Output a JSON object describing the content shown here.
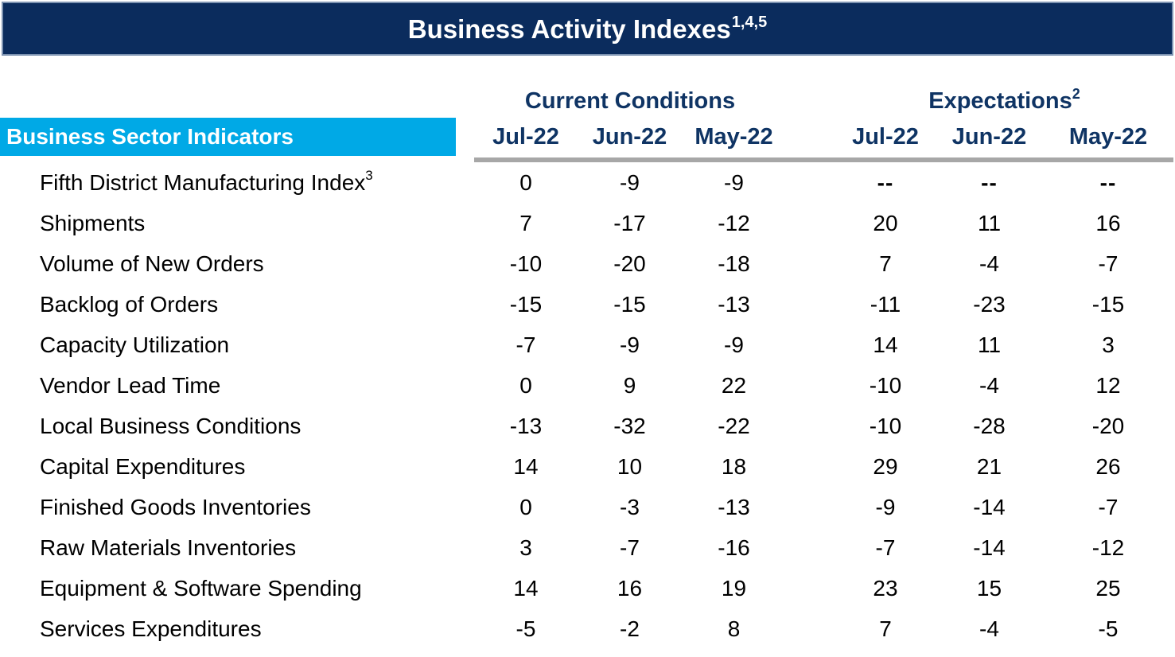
{
  "title": {
    "text": "Business Activity Indexes",
    "superscript": "1,4,5"
  },
  "colors": {
    "title_bar_bg": "#0b2c5d",
    "title_bar_border": "#7d93b1",
    "header_text_navy": "#0f3464",
    "sector_band_bg": "#00a9e6",
    "rule_gray": "#a7a7a7",
    "body_text": "#000000"
  },
  "table": {
    "sector_header": "Business Sector Indicators",
    "groups": [
      {
        "label": "Current Conditions",
        "superscript": "",
        "columns": [
          "Jul-22",
          "Jun-22",
          "May-22"
        ]
      },
      {
        "label": "Expectations",
        "superscript": "2",
        "columns": [
          "Jul-22",
          "Jun-22",
          "May-22"
        ]
      }
    ],
    "rows": [
      {
        "label": "Fifth District Manufacturing Index",
        "sup": "3",
        "current": [
          "0",
          "-9",
          "-9"
        ],
        "expectations": [
          "--",
          "--",
          "--"
        ]
      },
      {
        "label": "Shipments",
        "sup": "",
        "current": [
          "7",
          "-17",
          "-12"
        ],
        "expectations": [
          "20",
          "11",
          "16"
        ]
      },
      {
        "label": "Volume of New Orders",
        "sup": "",
        "current": [
          "-10",
          "-20",
          "-18"
        ],
        "expectations": [
          "7",
          "-4",
          "-7"
        ]
      },
      {
        "label": "Backlog of Orders",
        "sup": "",
        "current": [
          "-15",
          "-15",
          "-13"
        ],
        "expectations": [
          "-11",
          "-23",
          "-15"
        ]
      },
      {
        "label": "Capacity Utilization",
        "sup": "",
        "current": [
          "-7",
          "-9",
          "-9"
        ],
        "expectations": [
          "14",
          "11",
          "3"
        ]
      },
      {
        "label": "Vendor Lead Time",
        "sup": "",
        "current": [
          "0",
          "9",
          "22"
        ],
        "expectations": [
          "-10",
          "-4",
          "12"
        ]
      },
      {
        "label": "Local Business Conditions",
        "sup": "",
        "current": [
          "-13",
          "-32",
          "-22"
        ],
        "expectations": [
          "-10",
          "-28",
          "-20"
        ]
      },
      {
        "label": "Capital Expenditures",
        "sup": "",
        "current": [
          "14",
          "10",
          "18"
        ],
        "expectations": [
          "29",
          "21",
          "26"
        ]
      },
      {
        "label": "Finished Goods Inventories",
        "sup": "",
        "current": [
          "0",
          "-3",
          "-13"
        ],
        "expectations": [
          "-9",
          "-14",
          "-7"
        ]
      },
      {
        "label": "Raw Materials Inventories",
        "sup": "",
        "current": [
          "3",
          "-7",
          "-16"
        ],
        "expectations": [
          "-7",
          "-14",
          "-12"
        ]
      },
      {
        "label": "Equipment & Software Spending",
        "sup": "",
        "current": [
          "14",
          "16",
          "19"
        ],
        "expectations": [
          "23",
          "15",
          "25"
        ]
      },
      {
        "label": "Services Expenditures",
        "sup": "",
        "current": [
          "-5",
          "-2",
          "8"
        ],
        "expectations": [
          "7",
          "-4",
          "-5"
        ]
      }
    ]
  }
}
